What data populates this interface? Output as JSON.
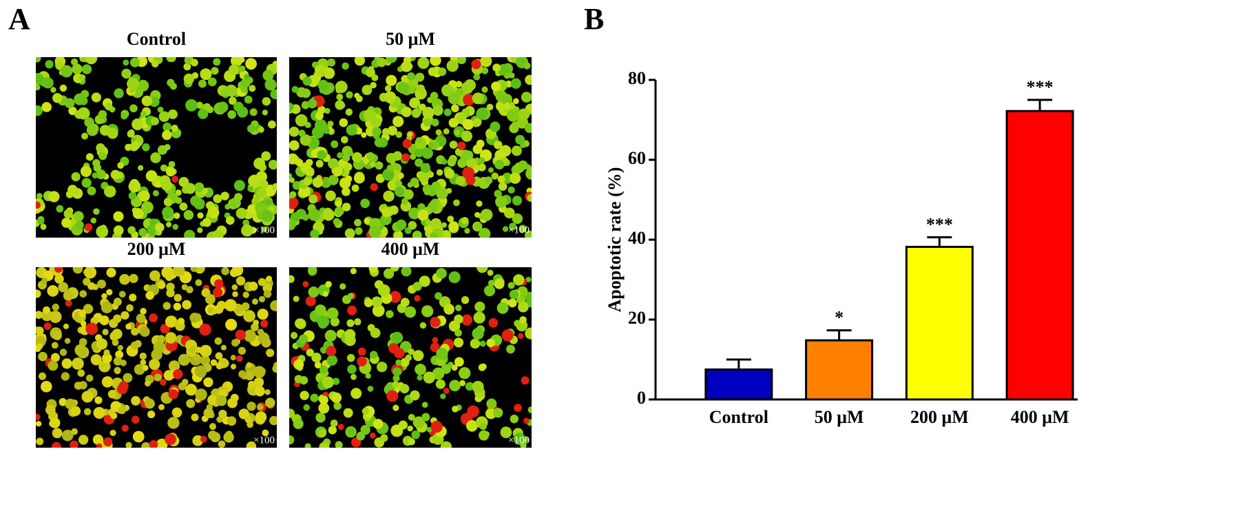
{
  "panel_labels": [
    "A",
    "B"
  ],
  "images": [
    {
      "title": "Control",
      "magnification": "×100"
    },
    {
      "title": "50 μM",
      "magnification": "×100"
    },
    {
      "title": "200 μM",
      "magnification": "×100"
    },
    {
      "title": "400 μM",
      "magnification": "×100"
    }
  ],
  "chart_data": {
    "type": "bar",
    "ylabel": "Apoptotic rate (%)",
    "categories": [
      "Control",
      "50 μM",
      "200 μM",
      "400 μM"
    ],
    "values": [
      7.5,
      14.8,
      38.2,
      72.2
    ],
    "errors": [
      2.5,
      2.5,
      2.4,
      2.8
    ],
    "annotations": [
      null,
      "*",
      "***",
      "***"
    ],
    "colors": [
      "#0000c0",
      "#ff8000",
      "#ffff00",
      "#ff0000"
    ],
    "ylim": [
      0,
      80
    ],
    "yticks": [
      0,
      20,
      40,
      60,
      80
    ]
  }
}
